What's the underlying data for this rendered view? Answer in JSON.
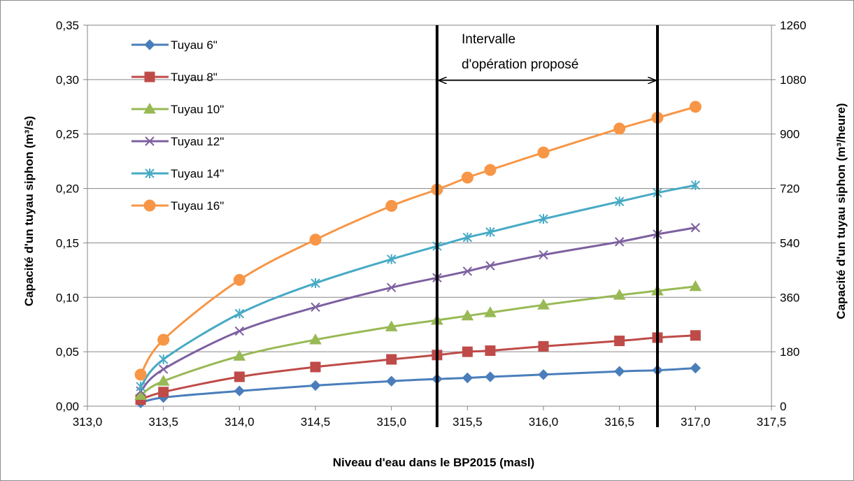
{
  "chart_data": {
    "type": "line",
    "xlabel": "Niveau d'eau dans le BP2015 (masl)",
    "ylabel": "Capacité d'un tuyau siphon (m³/s)",
    "y2label": "Capacité d'un tuyau siphon (m³/heure)",
    "xlim": [
      313.0,
      317.5
    ],
    "ylim": [
      0,
      0.35
    ],
    "y2lim": [
      0,
      1260
    ],
    "x_ticks": [
      "313,0",
      "313,5",
      "314,0",
      "314,5",
      "315,0",
      "315,5",
      "316,0",
      "316,5",
      "317,0",
      "317,5"
    ],
    "y_ticks": [
      "0,00",
      "0,05",
      "0,10",
      "0,15",
      "0,20",
      "0,25",
      "0,30",
      "0,35"
    ],
    "y2_ticks": [
      "0",
      "180",
      "360",
      "540",
      "720",
      "900",
      "1080",
      "1260"
    ],
    "grid": "horizontal",
    "legend_position": "top-left",
    "x": [
      313.35,
      313.5,
      314.0,
      314.5,
      315.0,
      315.3,
      315.5,
      315.65,
      316.0,
      316.5,
      316.75,
      317.0
    ],
    "series": [
      {
        "name": "Tuyau 6\"",
        "color": "#4a7ebb",
        "marker": "diamond",
        "values": [
          0.003,
          0.008,
          0.014,
          0.019,
          0.023,
          0.025,
          0.026,
          0.027,
          0.029,
          0.032,
          0.033,
          0.035
        ]
      },
      {
        "name": "Tuyau 8\"",
        "color": "#be4b48",
        "marker": "square",
        "values": [
          0.006,
          0.013,
          0.027,
          0.036,
          0.043,
          0.047,
          0.05,
          0.051,
          0.055,
          0.06,
          0.063,
          0.065
        ]
      },
      {
        "name": "Tuyau 10\"",
        "color": "#98b954",
        "marker": "triangle",
        "values": [
          0.01,
          0.023,
          0.046,
          0.061,
          0.073,
          0.079,
          0.083,
          0.086,
          0.093,
          0.102,
          0.106,
          0.11
        ]
      },
      {
        "name": "Tuyau 12\"",
        "color": "#7d60a0",
        "marker": "x",
        "values": [
          0.014,
          0.034,
          0.069,
          0.091,
          0.109,
          0.118,
          0.124,
          0.129,
          0.139,
          0.151,
          0.158,
          0.164
        ]
      },
      {
        "name": "Tuyau 14\"",
        "color": "#46aac5",
        "marker": "star",
        "values": [
          0.018,
          0.043,
          0.085,
          0.113,
          0.135,
          0.147,
          0.155,
          0.16,
          0.172,
          0.188,
          0.196,
          0.203
        ]
      },
      {
        "name": "Tuyau 16\"",
        "color": "#f79646",
        "marker": "circle",
        "values": [
          0.029,
          0.061,
          0.116,
          0.153,
          0.184,
          0.199,
          0.21,
          0.217,
          0.233,
          0.255,
          0.265,
          0.275
        ]
      }
    ],
    "vertical_lines": [
      315.3,
      316.75
    ],
    "annotation": {
      "line1": "Intervalle",
      "line2": "d'opération proposé",
      "x_from": 315.3,
      "x_to": 316.75
    }
  }
}
